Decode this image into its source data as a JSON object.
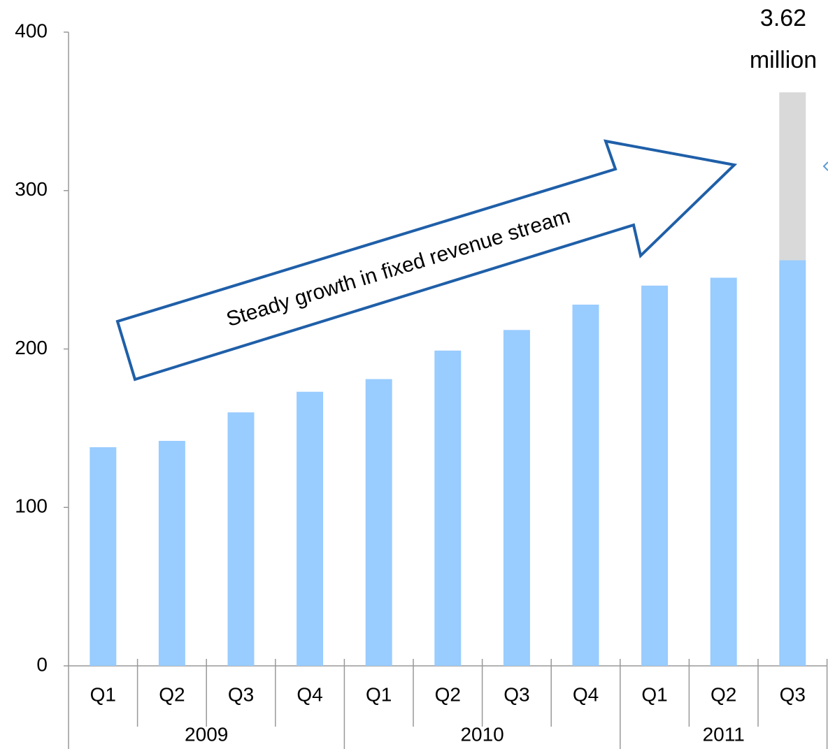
{
  "chart_data": {
    "type": "stacked_bar",
    "groups": [
      {
        "label": "2009",
        "categories": [
          "Q1",
          "Q2",
          "Q3",
          "Q4"
        ]
      },
      {
        "label": "2010",
        "categories": [
          "Q1",
          "Q2",
          "Q3",
          "Q4"
        ]
      },
      {
        "label": "2011",
        "categories": [
          "Q1",
          "Q2",
          "Q3"
        ]
      }
    ],
    "series": [
      {
        "color": "#99ccff",
        "values": [
          138,
          142,
          160,
          173,
          181,
          199,
          212,
          228,
          240,
          245,
          256
        ]
      },
      {
        "color": "#d9d9d9",
        "values": [
          null,
          null,
          null,
          null,
          null,
          null,
          null,
          null,
          null,
          null,
          106
        ]
      }
    ],
    "ylim": [
      0,
      400
    ],
    "yticks": [
      0,
      100,
      200,
      300,
      400
    ],
    "annotations": [
      {
        "text": "Steady growth in fixed revenue stream"
      },
      {
        "lines": [
          "3.62",
          "million"
        ]
      }
    ]
  }
}
